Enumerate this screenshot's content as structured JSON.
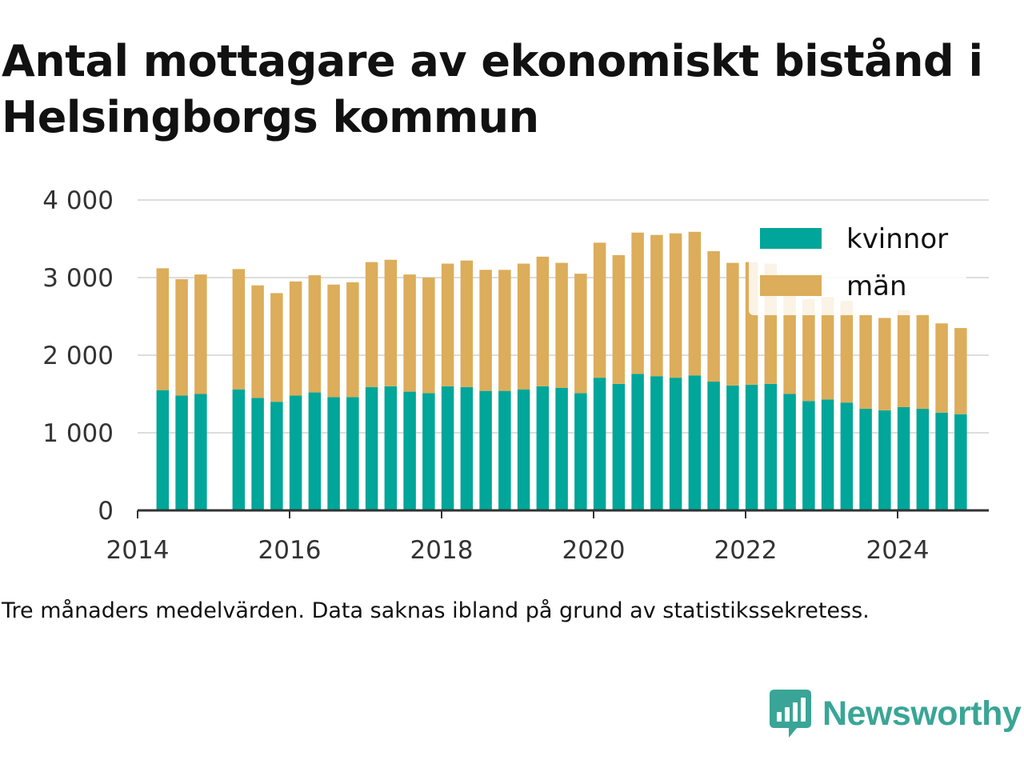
{
  "title": "Antal mottagare av ekonomiskt bistånd i Helsingborgs kommun",
  "note": "Tre månaders medelvärden. Data saknas ibland på grund av statistikssekretess.",
  "brand": {
    "name": "Newsworthy",
    "icon": "newsworthy-logo-icon",
    "color": "#3aa596"
  },
  "colors": {
    "kvinnor": "#00a699",
    "man": "#dcad5a",
    "grid": "#dddddd",
    "axis": "#333333"
  },
  "chart_data": {
    "type": "bar",
    "stacked": true,
    "x_start": 2014.0,
    "x_end": 2025.2,
    "x_ticks": [
      2014,
      2016,
      2018,
      2020,
      2022,
      2024
    ],
    "ylim": [
      0,
      4000
    ],
    "y_ticks": [
      0,
      1000,
      2000,
      3000,
      4000
    ],
    "y_tick_labels": [
      "0",
      "1 000",
      "2 000",
      "3 000",
      "4 000"
    ],
    "legend_position": "top-right",
    "x": [
      2014.33,
      2014.58,
      2014.83,
      2015.33,
      2015.58,
      2015.83,
      2016.08,
      2016.33,
      2016.58,
      2016.83,
      2017.08,
      2017.33,
      2017.58,
      2017.83,
      2018.08,
      2018.33,
      2018.58,
      2018.83,
      2019.08,
      2019.33,
      2019.58,
      2019.83,
      2020.08,
      2020.33,
      2020.58,
      2020.83,
      2021.08,
      2021.33,
      2021.58,
      2021.83,
      2022.08,
      2022.33,
      2022.58,
      2022.83,
      2023.08,
      2023.33,
      2023.58,
      2023.83,
      2024.08,
      2024.33,
      2024.58,
      2024.83
    ],
    "series": [
      {
        "name": "kvinnor",
        "values": [
          1550,
          1480,
          1500,
          1560,
          1450,
          1400,
          1480,
          1520,
          1460,
          1460,
          1590,
          1600,
          1530,
          1510,
          1600,
          1590,
          1540,
          1540,
          1560,
          1600,
          1580,
          1510,
          1710,
          1630,
          1760,
          1730,
          1710,
          1740,
          1660,
          1610,
          1620,
          1630,
          1500,
          1410,
          1430,
          1390,
          1310,
          1290,
          1330,
          1310,
          1260,
          1240
        ]
      },
      {
        "name": "män",
        "values": [
          1570,
          1500,
          1540,
          1550,
          1450,
          1400,
          1470,
          1510,
          1450,
          1480,
          1610,
          1630,
          1510,
          1490,
          1580,
          1630,
          1560,
          1560,
          1620,
          1670,
          1610,
          1540,
          1740,
          1660,
          1820,
          1820,
          1860,
          1850,
          1680,
          1580,
          1580,
          1550,
          1410,
          1310,
          1320,
          1310,
          1210,
          1190,
          1250,
          1220,
          1150,
          1110
        ]
      }
    ]
  }
}
